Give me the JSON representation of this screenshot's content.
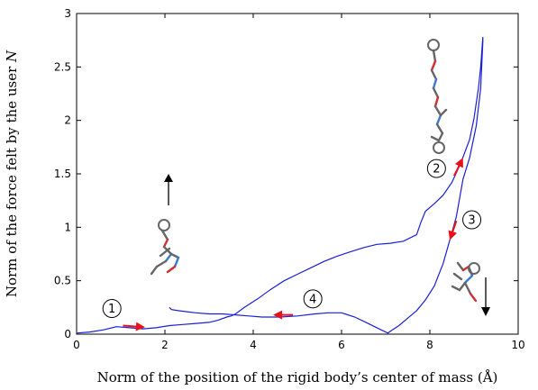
{
  "chart_data": {
    "type": "line",
    "xlabel": "Norm of the position of the rigid body’s center of mass (Å)",
    "ylabel_prefix": "Norm of the force felt by the user ",
    "ylabel_var": "N",
    "xlim": [
      0,
      10
    ],
    "ylim": [
      0,
      3
    ],
    "x_ticks": [
      0,
      2,
      4,
      6,
      8,
      10
    ],
    "y_ticks": [
      0,
      0.5,
      1,
      1.5,
      2,
      2.5,
      3
    ],
    "x_tick_labels": [
      "0",
      "2",
      "4",
      "6",
      "8",
      "10"
    ],
    "y_tick_labels": [
      "0",
      "0.5",
      "1",
      "1.5",
      "2",
      "2.5",
      "3"
    ],
    "grid": false,
    "colors": {
      "curve": "#1a1fd6",
      "arrow": "#e8101a",
      "axis": "#000000",
      "molecule": "#666666"
    },
    "series": [
      {
        "points": [
          [
            0.0,
            0.01
          ],
          [
            0.3,
            0.02
          ],
          [
            0.6,
            0.04
          ],
          [
            0.9,
            0.07
          ],
          [
            1.2,
            0.06
          ],
          [
            1.5,
            0.05
          ],
          [
            1.8,
            0.06
          ],
          [
            2.1,
            0.08
          ],
          [
            2.4,
            0.09
          ],
          [
            2.7,
            0.1
          ],
          [
            3.0,
            0.11
          ],
          [
            3.2,
            0.13
          ],
          [
            3.4,
            0.16
          ],
          [
            3.5,
            0.17
          ],
          [
            3.6,
            0.19
          ],
          [
            3.8,
            0.25
          ],
          [
            4.1,
            0.33
          ],
          [
            4.4,
            0.42
          ],
          [
            4.7,
            0.5
          ],
          [
            5.0,
            0.56
          ],
          [
            5.3,
            0.62
          ],
          [
            5.6,
            0.68
          ],
          [
            5.9,
            0.73
          ],
          [
            6.2,
            0.77
          ],
          [
            6.5,
            0.81
          ],
          [
            6.8,
            0.84
          ],
          [
            7.1,
            0.85
          ],
          [
            7.4,
            0.87
          ],
          [
            7.7,
            0.93
          ],
          [
            7.8,
            1.05
          ],
          [
            7.9,
            1.15
          ],
          [
            8.1,
            1.22
          ],
          [
            8.3,
            1.3
          ],
          [
            8.5,
            1.42
          ],
          [
            8.7,
            1.6
          ],
          [
            8.9,
            1.82
          ],
          [
            9.0,
            2.02
          ],
          [
            9.1,
            2.3
          ],
          [
            9.15,
            2.5
          ],
          [
            9.2,
            2.78
          ],
          [
            9.2,
            2.74
          ],
          [
            9.15,
            2.3
          ],
          [
            9.05,
            1.95
          ],
          [
            8.9,
            1.65
          ],
          [
            8.75,
            1.45
          ],
          [
            8.6,
            1.1
          ],
          [
            8.45,
            0.88
          ],
          [
            8.3,
            0.66
          ],
          [
            8.1,
            0.45
          ],
          [
            7.9,
            0.32
          ],
          [
            7.7,
            0.22
          ],
          [
            7.5,
            0.15
          ],
          [
            7.3,
            0.08
          ],
          [
            7.15,
            0.04
          ],
          [
            7.05,
            0.01
          ],
          [
            6.9,
            0.04
          ],
          [
            6.6,
            0.1
          ],
          [
            6.3,
            0.16
          ],
          [
            6.0,
            0.2
          ],
          [
            5.7,
            0.2
          ],
          [
            5.4,
            0.19
          ],
          [
            5.0,
            0.17
          ],
          [
            4.6,
            0.16
          ],
          [
            4.2,
            0.16
          ],
          [
            3.9,
            0.17
          ],
          [
            3.6,
            0.18
          ],
          [
            3.3,
            0.19
          ],
          [
            3.0,
            0.19
          ],
          [
            2.7,
            0.2
          ],
          [
            2.5,
            0.21
          ],
          [
            2.3,
            0.22
          ],
          [
            2.15,
            0.23
          ],
          [
            2.1,
            0.25
          ]
        ]
      }
    ],
    "annotations": [
      {
        "label": "1",
        "x": 0.8,
        "y": 0.24
      },
      {
        "label": "2",
        "x": 8.15,
        "y": 1.55
      },
      {
        "label": "3",
        "x": 8.95,
        "y": 1.07
      },
      {
        "label": "4",
        "x": 5.35,
        "y": 0.33
      }
    ],
    "arrows": [
      {
        "name": "arrow-1",
        "from": [
          1.05,
          0.08
        ],
        "to": [
          1.55,
          0.065
        ]
      },
      {
        "name": "arrow-2",
        "from": [
          8.55,
          1.48
        ],
        "to": [
          8.75,
          1.65
        ]
      },
      {
        "name": "arrow-3",
        "from": [
          8.6,
          1.06
        ],
        "to": [
          8.45,
          0.88
        ]
      },
      {
        "name": "arrow-4",
        "from": [
          4.9,
          0.18
        ],
        "to": [
          4.45,
          0.18
        ]
      }
    ]
  }
}
